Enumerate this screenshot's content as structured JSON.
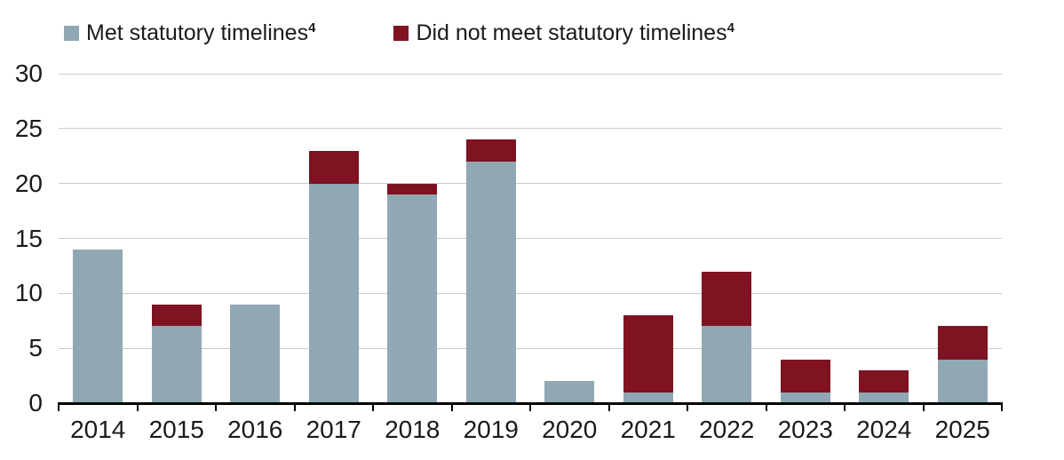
{
  "legend": {
    "items": [
      {
        "label": "Met statutory timelines",
        "sup": "4",
        "color": "#90A8B3"
      },
      {
        "label": "Did not meet statutory timelines",
        "sup": "4",
        "color": "#7F1322"
      }
    ]
  },
  "chart_data": {
    "type": "bar",
    "stacked": true,
    "title": "",
    "xlabel": "",
    "ylabel": "",
    "categories": [
      "2014",
      "2015",
      "2016",
      "2017",
      "2018",
      "2019",
      "2020",
      "2021",
      "2022",
      "2023",
      "2024",
      "2025"
    ],
    "series": [
      {
        "name": "Met statutory timelines",
        "color": "#90A8B3",
        "values": [
          14,
          7,
          9,
          20,
          19,
          22,
          2,
          1,
          7,
          1,
          1,
          4
        ]
      },
      {
        "name": "Did not meet statutory timelines",
        "color": "#7F1322",
        "values": [
          0,
          2,
          0,
          3,
          1,
          2,
          0,
          7,
          5,
          3,
          2,
          3
        ]
      }
    ],
    "totals": [
      14,
      9,
      9,
      23,
      20,
      24,
      2,
      8,
      12,
      4,
      3,
      7
    ],
    "ylim": [
      0,
      30
    ],
    "yticks": [
      0,
      5,
      10,
      15,
      20,
      25,
      30
    ],
    "grid": true,
    "legend_position": "top",
    "axis_color": "#000000",
    "gridline_color": "#cccccc",
    "text_color": "#1a1a1a"
  }
}
